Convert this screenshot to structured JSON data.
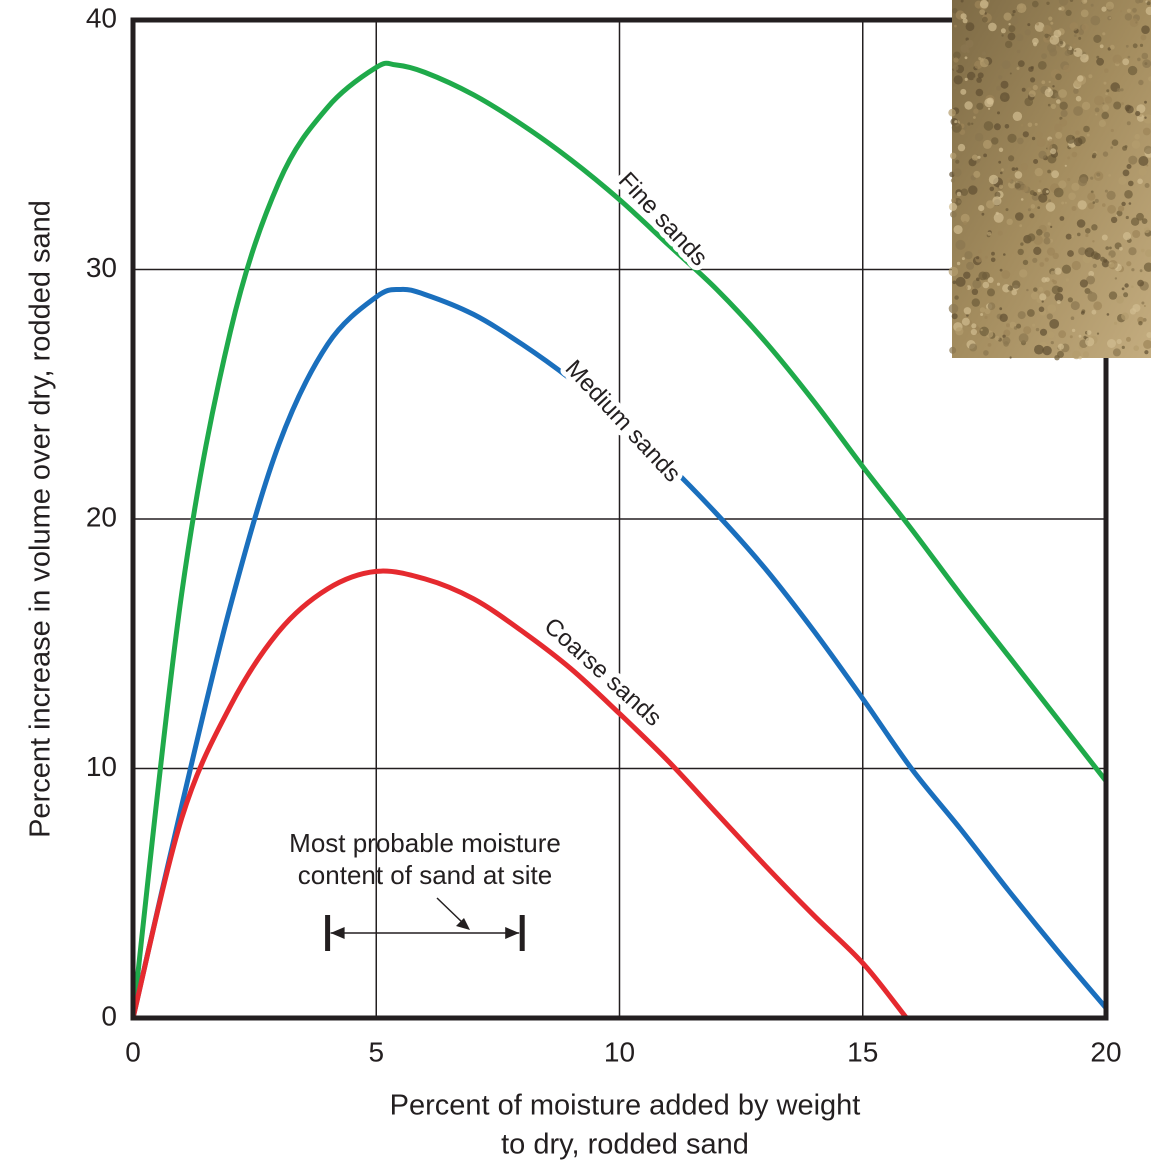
{
  "chart_data": {
    "type": "line",
    "xlabel": [
      "Percent of moisture added by weight",
      "to dry, rodded sand"
    ],
    "ylabel": "Percent increase in volume over dry, rodded sand",
    "xlim": [
      0,
      20
    ],
    "ylim": [
      0,
      40
    ],
    "xticks": [
      0,
      5,
      10,
      15,
      20
    ],
    "yticks": [
      0,
      10,
      20,
      30,
      40
    ],
    "grid": true,
    "series": [
      {
        "name": "Fine sands",
        "color": "#1faa4a",
        "x": [
          0,
          1,
          2,
          3,
          4,
          5,
          5.4,
          6,
          7,
          8,
          9,
          10,
          11,
          12,
          13,
          14,
          15,
          16,
          17,
          18,
          19,
          20
        ],
        "values": [
          0,
          17,
          27.5,
          33.5,
          36.5,
          38.1,
          38.2,
          37.9,
          37,
          35.8,
          34.4,
          32.8,
          31,
          29.2,
          27.1,
          24.7,
          22.1,
          19.6,
          17,
          14.5,
          12,
          9.5
        ]
      },
      {
        "name": "Medium sands",
        "color": "#1a6fbd",
        "x": [
          0,
          1,
          2,
          3,
          4,
          5,
          5.5,
          6,
          7,
          8,
          9,
          10,
          11,
          12,
          13,
          14,
          15,
          16,
          17,
          18,
          19,
          20
        ],
        "values": [
          0,
          8.5,
          16.5,
          23,
          27,
          28.9,
          29.2,
          29,
          28.2,
          27,
          25.6,
          24,
          22.2,
          20.2,
          18,
          15.5,
          12.8,
          10,
          7.6,
          5.1,
          2.7,
          0.4
        ]
      },
      {
        "name": "Coarse sands",
        "color": "#e52a2f",
        "x": [
          0,
          1,
          2,
          3,
          4,
          5,
          6,
          7,
          8,
          9,
          10,
          11,
          12,
          13,
          14,
          15,
          15.9
        ],
        "values": [
          0,
          8,
          12.5,
          15.5,
          17.2,
          17.9,
          17.6,
          16.8,
          15.5,
          14,
          12.2,
          10.3,
          8.2,
          6.1,
          4.1,
          2.2,
          0
        ]
      }
    ],
    "annotation": {
      "lines": [
        "Most probable moisture",
        "content of sand at site"
      ],
      "range": [
        4,
        8
      ]
    }
  }
}
